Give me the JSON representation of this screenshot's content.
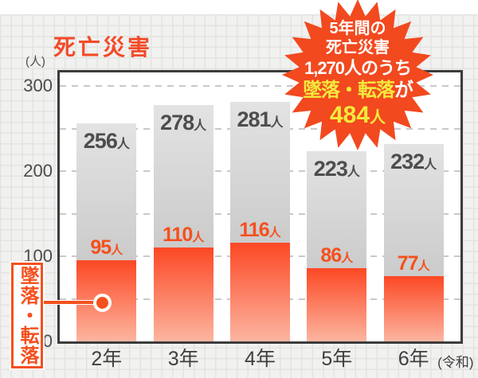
{
  "title": "死亡災害",
  "y_axis": {
    "unit_label": "(人)"
  },
  "chart_data": {
    "type": "bar",
    "stacked": true,
    "title": "死亡災害",
    "categories": [
      "2年",
      "3年",
      "4年",
      "5年",
      "6年"
    ],
    "era_suffix": "(令和)",
    "value_unit": "人",
    "totals": [
      256,
      278,
      281,
      223,
      232
    ],
    "series": [
      {
        "name": "墜落・転落",
        "values": [
          95,
          110,
          116,
          86,
          77
        ]
      },
      {
        "name": "",
        "values": [
          161,
          168,
          165,
          137,
          155
        ]
      }
    ],
    "yticks": [
      0,
      100,
      200,
      300
    ],
    "grid_interval": 50,
    "ylim": [
      0,
      316
    ],
    "legend": "none",
    "grid": "dashed"
  },
  "badge": {
    "lines_white": [
      "5年間の",
      "死亡災害",
      "1,270人のうち"
    ],
    "highlight": "墜落・転落",
    "highlight_suffix": "が",
    "value": "484",
    "value_unit": "人"
  },
  "callout": {
    "label": "墜落・転落"
  },
  "colors": {
    "accent": "#f4501e",
    "title": "#f24b28",
    "badge_bg": "#f2491f",
    "badge_yellow": "#f3ea3c",
    "bar_red_top": "#fc4824",
    "bar_red_bottom": "#fcb5a0",
    "bar_gray_top": "#e3e3e3",
    "bar_gray_bottom": "#cbcbcb",
    "total_label": "#4d4d4d",
    "axis_border": "#3c3c3c",
    "grid_dash": "#c9c9c9",
    "paper_bg": "#f1f1f0"
  }
}
